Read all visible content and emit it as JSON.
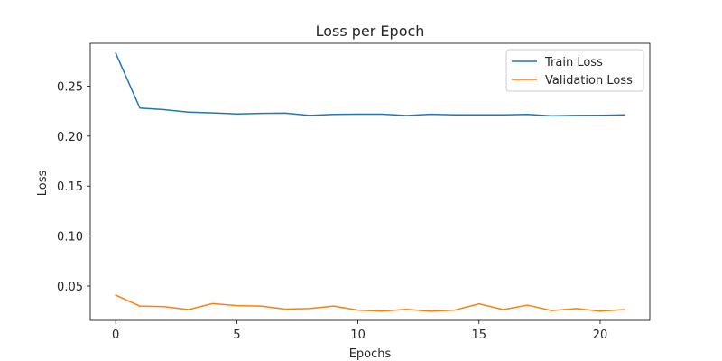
{
  "chart_data": {
    "type": "line",
    "title": "Loss per Epoch",
    "xlabel": "Epochs",
    "ylabel": "Loss",
    "xlim": [
      -1.05,
      22.05
    ],
    "ylim": [
      0.0157,
      0.2928
    ],
    "xticks": [
      0,
      5,
      10,
      15,
      20
    ],
    "yticks": [
      0.05,
      0.1,
      0.15,
      0.2,
      0.25
    ],
    "ytick_labels": [
      "0.05",
      "0.10",
      "0.15",
      "0.20",
      "0.25"
    ],
    "grid": false,
    "legend": "top-right",
    "x": [
      0,
      1,
      2,
      3,
      4,
      5,
      6,
      7,
      8,
      9,
      10,
      11,
      12,
      13,
      14,
      15,
      16,
      17,
      18,
      19,
      20,
      21
    ],
    "series": [
      {
        "name": "Train Loss",
        "color": "#1f77b4",
        "values": [
          0.283,
          0.228,
          0.2265,
          0.224,
          0.2232,
          0.2222,
          0.2227,
          0.223,
          0.2207,
          0.2217,
          0.222,
          0.222,
          0.2206,
          0.2218,
          0.2213,
          0.2213,
          0.2213,
          0.2217,
          0.2202,
          0.2207,
          0.2208,
          0.2213
        ]
      },
      {
        "name": "Validation Loss",
        "color": "#ff7f0e",
        "values": [
          0.041,
          0.03,
          0.0295,
          0.0265,
          0.0325,
          0.0305,
          0.03,
          0.027,
          0.0275,
          0.03,
          0.026,
          0.025,
          0.0268,
          0.0248,
          0.026,
          0.0323,
          0.0265,
          0.031,
          0.0255,
          0.0275,
          0.025,
          0.0265
        ]
      }
    ]
  }
}
